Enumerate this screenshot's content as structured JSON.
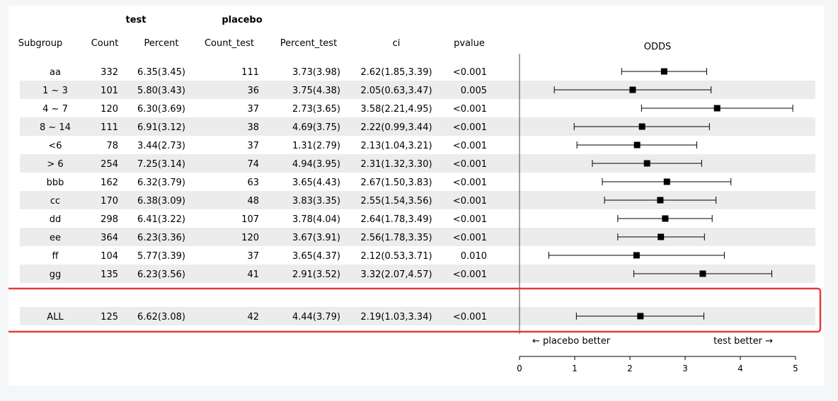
{
  "group_headers": {
    "test": "test",
    "placebo": "placebo"
  },
  "columns": [
    "Subgroup",
    "Count",
    "Percent",
    "Count_test",
    "Percent_test",
    "ci",
    "pvalue"
  ],
  "odds_header": "ODDS",
  "rows": [
    {
      "subgroup": "aa",
      "count": "332",
      "percent": "6.35(3.45)",
      "count_test": "111",
      "percent_test": "3.73(3.98)",
      "ci": "2.62(1.85,3.39)",
      "pvalue": "<0.001"
    },
    {
      "subgroup": "1 ~ 3",
      "count": "101",
      "percent": "5.80(3.43)",
      "count_test": "36",
      "percent_test": "3.75(4.38)",
      "ci": "2.05(0.63,3.47)",
      "pvalue": "0.005"
    },
    {
      "subgroup": "4 ~ 7",
      "count": "120",
      "percent": "6.30(3.69)",
      "count_test": "37",
      "percent_test": "2.73(3.65)",
      "ci": "3.58(2.21,4.95)",
      "pvalue": "<0.001"
    },
    {
      "subgroup": "8 ~ 14",
      "count": "111",
      "percent": "6.91(3.12)",
      "count_test": "38",
      "percent_test": "4.69(3.75)",
      "ci": "2.22(0.99,3.44)",
      "pvalue": "<0.001"
    },
    {
      "subgroup": "<6",
      "count": "78",
      "percent": "3.44(2.73)",
      "count_test": "37",
      "percent_test": "1.31(2.79)",
      "ci": "2.13(1.04,3.21)",
      "pvalue": "<0.001"
    },
    {
      "subgroup": "> 6",
      "count": "254",
      "percent": "7.25(3.14)",
      "count_test": "74",
      "percent_test": "4.94(3.95)",
      "ci": "2.31(1.32,3.30)",
      "pvalue": "<0.001"
    },
    {
      "subgroup": "bbb",
      "count": "162",
      "percent": "6.32(3.79)",
      "count_test": "63",
      "percent_test": "3.65(4.43)",
      "ci": "2.67(1.50,3.83)",
      "pvalue": "<0.001"
    },
    {
      "subgroup": "cc",
      "count": "170",
      "percent": "6.38(3.09)",
      "count_test": "48",
      "percent_test": "3.83(3.35)",
      "ci": "2.55(1.54,3.56)",
      "pvalue": "<0.001"
    },
    {
      "subgroup": "dd",
      "count": "298",
      "percent": "6.41(3.22)",
      "count_test": "107",
      "percent_test": "3.78(4.04)",
      "ci": "2.64(1.78,3.49)",
      "pvalue": "<0.001"
    },
    {
      "subgroup": "ee",
      "count": "364",
      "percent": "6.23(3.36)",
      "count_test": "120",
      "percent_test": "3.67(3.91)",
      "ci": "2.56(1.78,3.35)",
      "pvalue": "<0.001"
    },
    {
      "subgroup": "ff",
      "count": "104",
      "percent": "5.77(3.39)",
      "count_test": "37",
      "percent_test": "3.65(4.37)",
      "ci": "2.12(0.53,3.71)",
      "pvalue": "0.010"
    },
    {
      "subgroup": "gg",
      "count": "135",
      "percent": "6.23(3.56)",
      "count_test": "41",
      "percent_test": "2.91(3.52)",
      "ci": "3.32(2.07,4.57)",
      "pvalue": "<0.001"
    }
  ],
  "total_row": {
    "subgroup": "ALL",
    "count": "125",
    "percent": "6.62(3.08)",
    "count_test": "42",
    "percent_test": "4.44(3.79)",
    "ci": "2.19(1.03,3.34)",
    "pvalue": "<0.001"
  },
  "arrow_labels": {
    "left": "← placebo better",
    "right": "test better →"
  },
  "colors": {
    "highlight_box": "#e63a3a",
    "stripe": "#ececec",
    "marker": "#000000"
  },
  "chart_data": {
    "type": "scatter",
    "subtype": "forest",
    "title": "ODDS",
    "xlabel": "",
    "ylabel": "",
    "xlim": [
      0,
      5
    ],
    "x_ticks": [
      0,
      1,
      2,
      3,
      4,
      5
    ],
    "reference_line": 0,
    "points": [
      {
        "label": "aa",
        "estimate": 2.62,
        "lower": 1.85,
        "upper": 3.39
      },
      {
        "label": "1 ~ 3",
        "estimate": 2.05,
        "lower": 0.63,
        "upper": 3.47
      },
      {
        "label": "4 ~ 7",
        "estimate": 3.58,
        "lower": 2.21,
        "upper": 4.95
      },
      {
        "label": "8 ~ 14",
        "estimate": 2.22,
        "lower": 0.99,
        "upper": 3.44
      },
      {
        "label": "<6",
        "estimate": 2.13,
        "lower": 1.04,
        "upper": 3.21
      },
      {
        "label": "> 6",
        "estimate": 2.31,
        "lower": 1.32,
        "upper": 3.3
      },
      {
        "label": "bbb",
        "estimate": 2.67,
        "lower": 1.5,
        "upper": 3.83
      },
      {
        "label": "cc",
        "estimate": 2.55,
        "lower": 1.54,
        "upper": 3.56
      },
      {
        "label": "dd",
        "estimate": 2.64,
        "lower": 1.78,
        "upper": 3.49
      },
      {
        "label": "ee",
        "estimate": 2.56,
        "lower": 1.78,
        "upper": 3.35
      },
      {
        "label": "ff",
        "estimate": 2.12,
        "lower": 0.53,
        "upper": 3.71
      },
      {
        "label": "gg",
        "estimate": 3.32,
        "lower": 2.07,
        "upper": 4.57
      },
      {
        "label": "ALL",
        "estimate": 2.19,
        "lower": 1.03,
        "upper": 3.34
      }
    ]
  }
}
